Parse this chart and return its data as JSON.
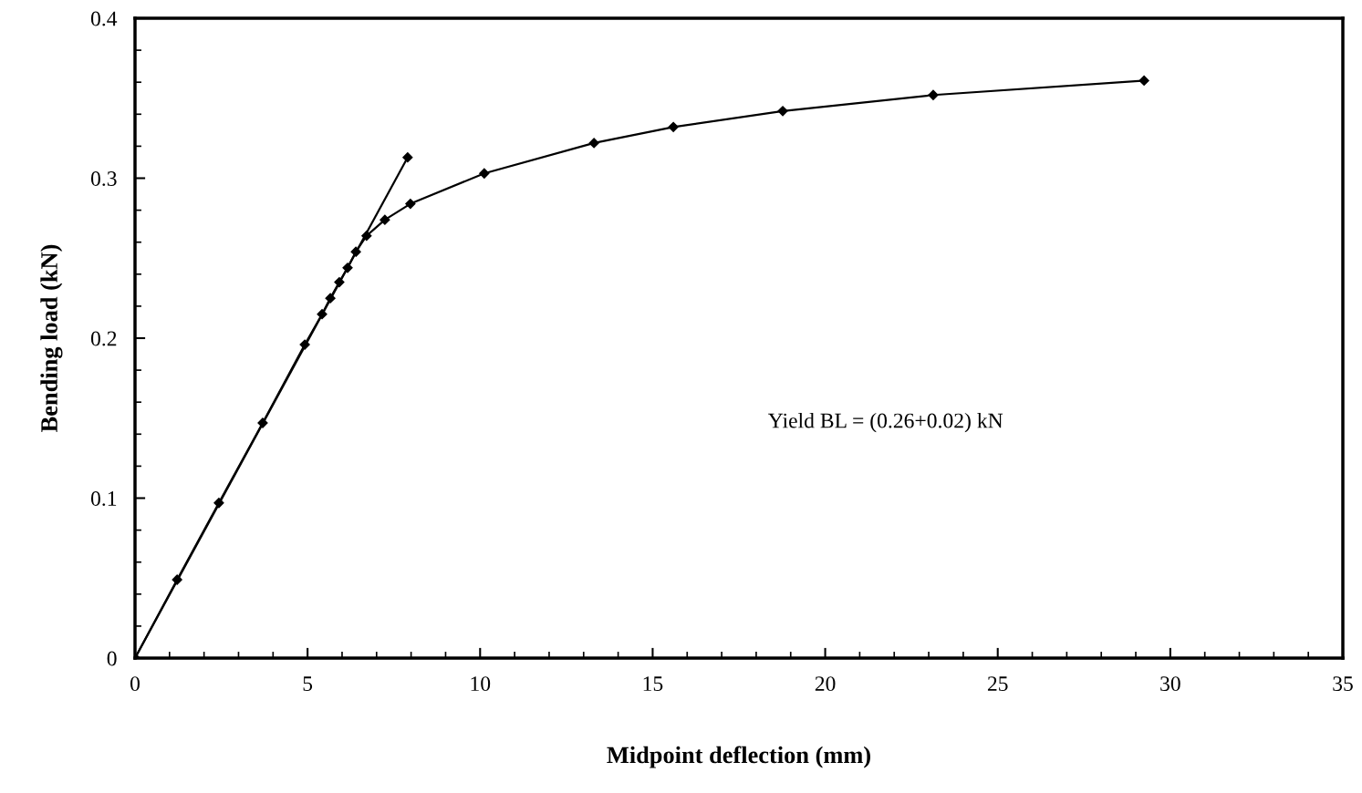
{
  "chart_data": {
    "type": "line",
    "xlabel": "Midpoint deflection (mm)",
    "ylabel": "Bending load (kN)",
    "xlim": [
      0,
      35
    ],
    "xticks": [
      0,
      5,
      10,
      15,
      20,
      25,
      30,
      35
    ],
    "ylim": [
      0,
      0.4
    ],
    "yticks": [
      0,
      0.1,
      0.2,
      0.3,
      0.4
    ],
    "marker": "diamond",
    "line_style": "solid",
    "grid": false,
    "legend": false,
    "annotations": [
      "Yield BL = (0.26+0.02) kN"
    ],
    "series": [
      {
        "color": "#000000",
        "x": [
          0,
          1.22,
          2.43,
          3.7,
          4.92,
          5.42,
          5.66,
          5.92,
          6.16,
          6.4,
          6.71,
          7.24,
          7.98,
          10.12,
          13.3,
          15.6,
          18.77,
          23.13,
          29.24
        ],
        "values": [
          0,
          0.049,
          0.097,
          0.147,
          0.196,
          0.215,
          0.225,
          0.235,
          0.244,
          0.254,
          0.264,
          0.274,
          0.284,
          0.303,
          0.322,
          0.332,
          0.342,
          0.352,
          0.361
        ]
      },
      {
        "color": "#000000",
        "x": [
          0,
          7.9
        ],
        "values": [
          0,
          0.313
        ]
      }
    ]
  }
}
